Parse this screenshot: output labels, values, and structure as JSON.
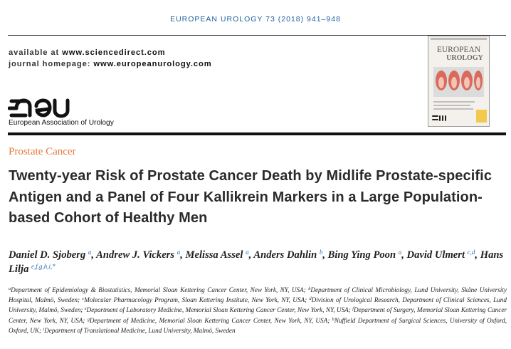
{
  "journal_header": "EUROPEAN UROLOGY 73 (2018) 941–948",
  "links": {
    "available_label": "available at",
    "available_url": "www.sciencedirect.com",
    "homepage_label": "journal homepage:",
    "homepage_url": "www.europeanurology.com"
  },
  "logo": {
    "wordmark": "eau",
    "organization": "European Association of Urology"
  },
  "cover": {
    "title_line1": "EUROPEAN",
    "title_line2": "UROLOGY",
    "publisher_mark": "eau"
  },
  "section": "Prostate Cancer",
  "article_title": "Twenty-year Risk of Prostate Cancer Death by Midlife Prostate-specific Antigen and a Panel of Four Kallikrein Markers in a Large Population-based Cohort of Healthy Men",
  "authors": [
    {
      "name": "Daniel D. Sjoberg",
      "aff": "a",
      "sep": ", "
    },
    {
      "name": "Andrew J. Vickers",
      "aff": "a",
      "sep": ", "
    },
    {
      "name": "Melissa Assel",
      "aff": "a",
      "sep": ", "
    },
    {
      "name": "Anders Dahlin",
      "aff": "b",
      "sep": ", "
    },
    {
      "name": "Bing Ying Poon",
      "aff": "a",
      "sep": ", "
    },
    {
      "name": "David Ulmert",
      "aff": "c,d",
      "sep": ", "
    },
    {
      "name": "Hans Lilja",
      "aff": "e,f,g,h,i,*",
      "sep": ""
    }
  ],
  "affiliations": [
    {
      "key": "a",
      "text": "Department of Epidemiology & Biostatistics, Memorial Sloan Kettering Cancer Center, New York, NY, USA; "
    },
    {
      "key": "b",
      "text": "Department of Clinical Microbiology, Lund University, Skåne University Hospital, Malmö, Sweden; "
    },
    {
      "key": "c",
      "text": "Molecular Pharmacology Program, Sloan Kettering Institute, New York, NY, USA; "
    },
    {
      "key": "d",
      "text": "Division of Urological Research, Department of Clinical Sciences, Lund University, Malmö, Sweden; "
    },
    {
      "key": "e",
      "text": "Department of Laboratory Medicine, Memorial Sloan Kettering Cancer Center, New York, NY, USA; "
    },
    {
      "key": "f",
      "text": "Department of Surgery, Memorial Sloan Kettering Cancer Center, New York, NY, USA; "
    },
    {
      "key": "g",
      "text": "Department of Medicine, Memorial Sloan Kettering Cancer Center, New York, NY, USA; "
    },
    {
      "key": "h",
      "text": "Nuffield Department of Surgical Sciences, University of Oxford, Oxford, UK; "
    },
    {
      "key": "i",
      "text": "Department of Translational Medicine, Lund University, Malmö, Sweden"
    }
  ],
  "colors": {
    "journal_blue": "#1f5f9f",
    "section_orange": "#e4793b",
    "superscript_blue": "#2a6fb0"
  }
}
